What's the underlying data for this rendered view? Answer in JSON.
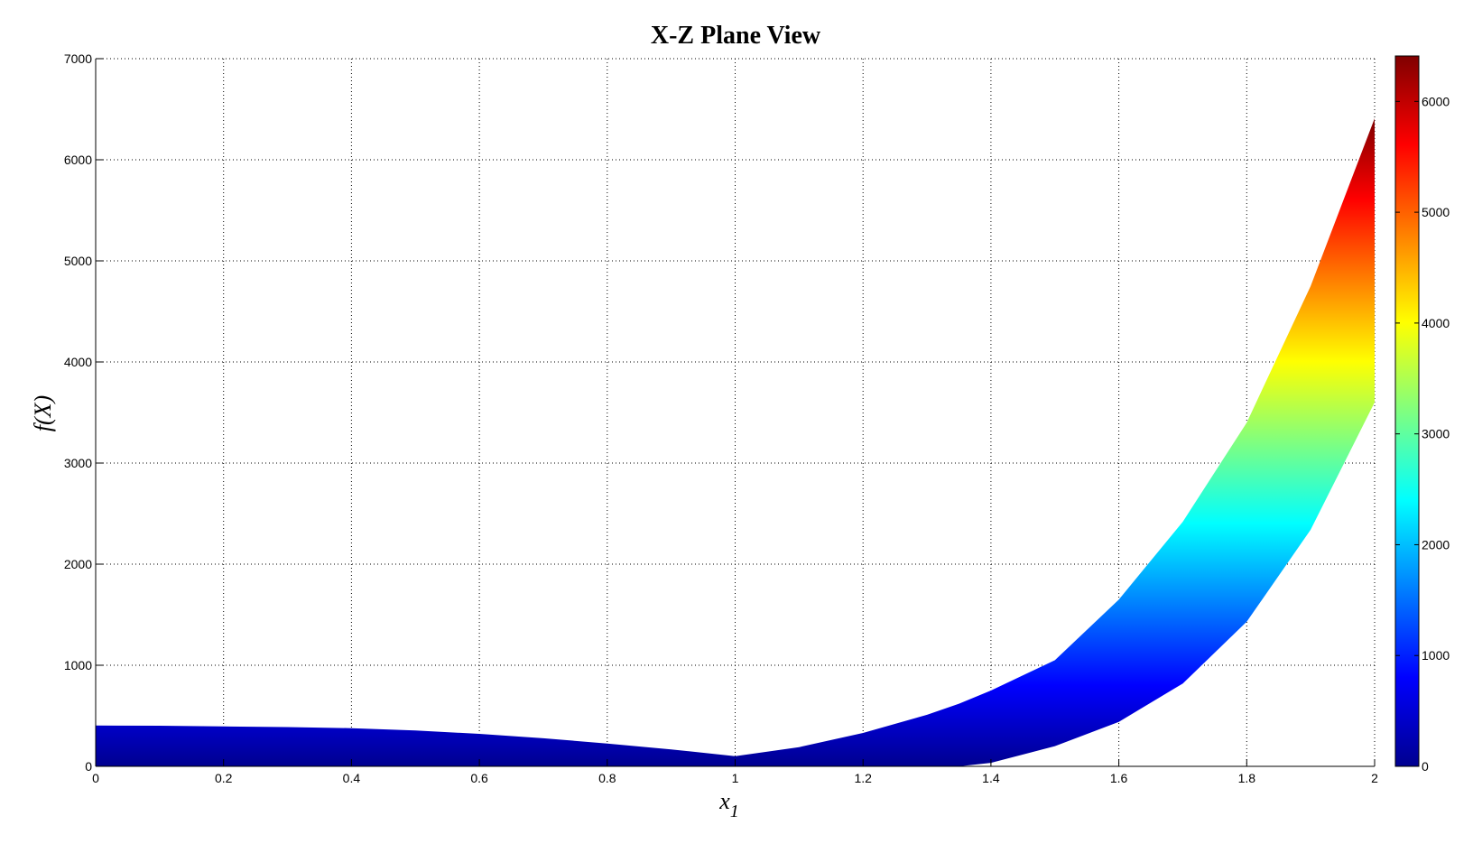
{
  "chart_data": {
    "type": "area",
    "title": "X-Z Plane View",
    "xlabel": "x",
    "xlabel_subscript": "1",
    "ylabel": "f(X)",
    "xlim": [
      0,
      2
    ],
    "ylim": [
      0,
      7000
    ],
    "xticks": [
      "0",
      "0.2",
      "0.4",
      "0.6",
      "0.8",
      "1",
      "1.2",
      "1.4",
      "1.6",
      "1.8",
      "2"
    ],
    "yticks": [
      "0",
      "1000",
      "2000",
      "3000",
      "4000",
      "5000",
      "6000",
      "7000"
    ],
    "grid": true,
    "colormap": "jet",
    "colormap_stops": [
      "#00008F",
      "#0000FF",
      "#00FFFF",
      "#FFFF00",
      "#FF0000",
      "#800000"
    ],
    "colorbar": {
      "location": "right",
      "clim": [
        0,
        6410
      ],
      "ticks": [
        "0",
        "1000",
        "2000",
        "3000",
        "4000",
        "5000",
        "6000"
      ]
    },
    "x": [
      0,
      0.1,
      0.2,
      0.3,
      0.4,
      0.5,
      0.6,
      0.7,
      0.8,
      0.9,
      1.0,
      1.1,
      1.2,
      1.3,
      1.35,
      1.4,
      1.5,
      1.6,
      1.7,
      1.8,
      1.9,
      2.0
    ],
    "upper": [
      404,
      402,
      395,
      388,
      378,
      355,
      321,
      278,
      226,
      168,
      101,
      190,
      330,
      510,
      620,
      750,
      1050,
      1650,
      2420,
      3400,
      4750,
      6410
    ],
    "lower": [
      0,
      0,
      0,
      0,
      0,
      0,
      0,
      0,
      0,
      0,
      0,
      0,
      0,
      0,
      0,
      35,
      200,
      440,
      820,
      1430,
      2340,
      3600
    ]
  }
}
